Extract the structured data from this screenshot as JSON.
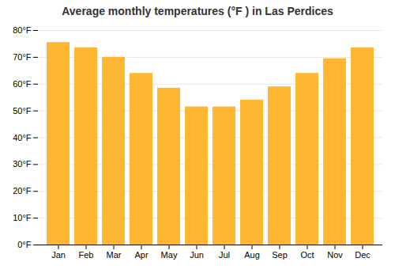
{
  "chart_data": {
    "type": "bar",
    "title": "Average monthly temperatures (°F ) in Las Perdices",
    "categories": [
      "Jan",
      "Feb",
      "Mar",
      "Apr",
      "May",
      "Jun",
      "Jul",
      "Aug",
      "Sep",
      "Oct",
      "Nov",
      "Dec"
    ],
    "values": [
      75.5,
      73.5,
      70.0,
      64.0,
      58.5,
      51.5,
      51.5,
      54.0,
      59.0,
      64.0,
      69.5,
      73.5
    ],
    "color": "#FFB733",
    "ylim": [
      0,
      80
    ],
    "yticks": [
      {
        "value": 0,
        "label": "0°F"
      },
      {
        "value": 10,
        "label": "10°F"
      },
      {
        "value": 20,
        "label": "20°F"
      },
      {
        "value": 30,
        "label": "30°F"
      },
      {
        "value": 40,
        "label": "40°F"
      },
      {
        "value": 50,
        "label": "50°F"
      },
      {
        "value": 60,
        "label": "60°F"
      },
      {
        "value": 70,
        "label": "70°F"
      },
      {
        "value": 80,
        "label": "80°F"
      }
    ],
    "grid": true
  }
}
